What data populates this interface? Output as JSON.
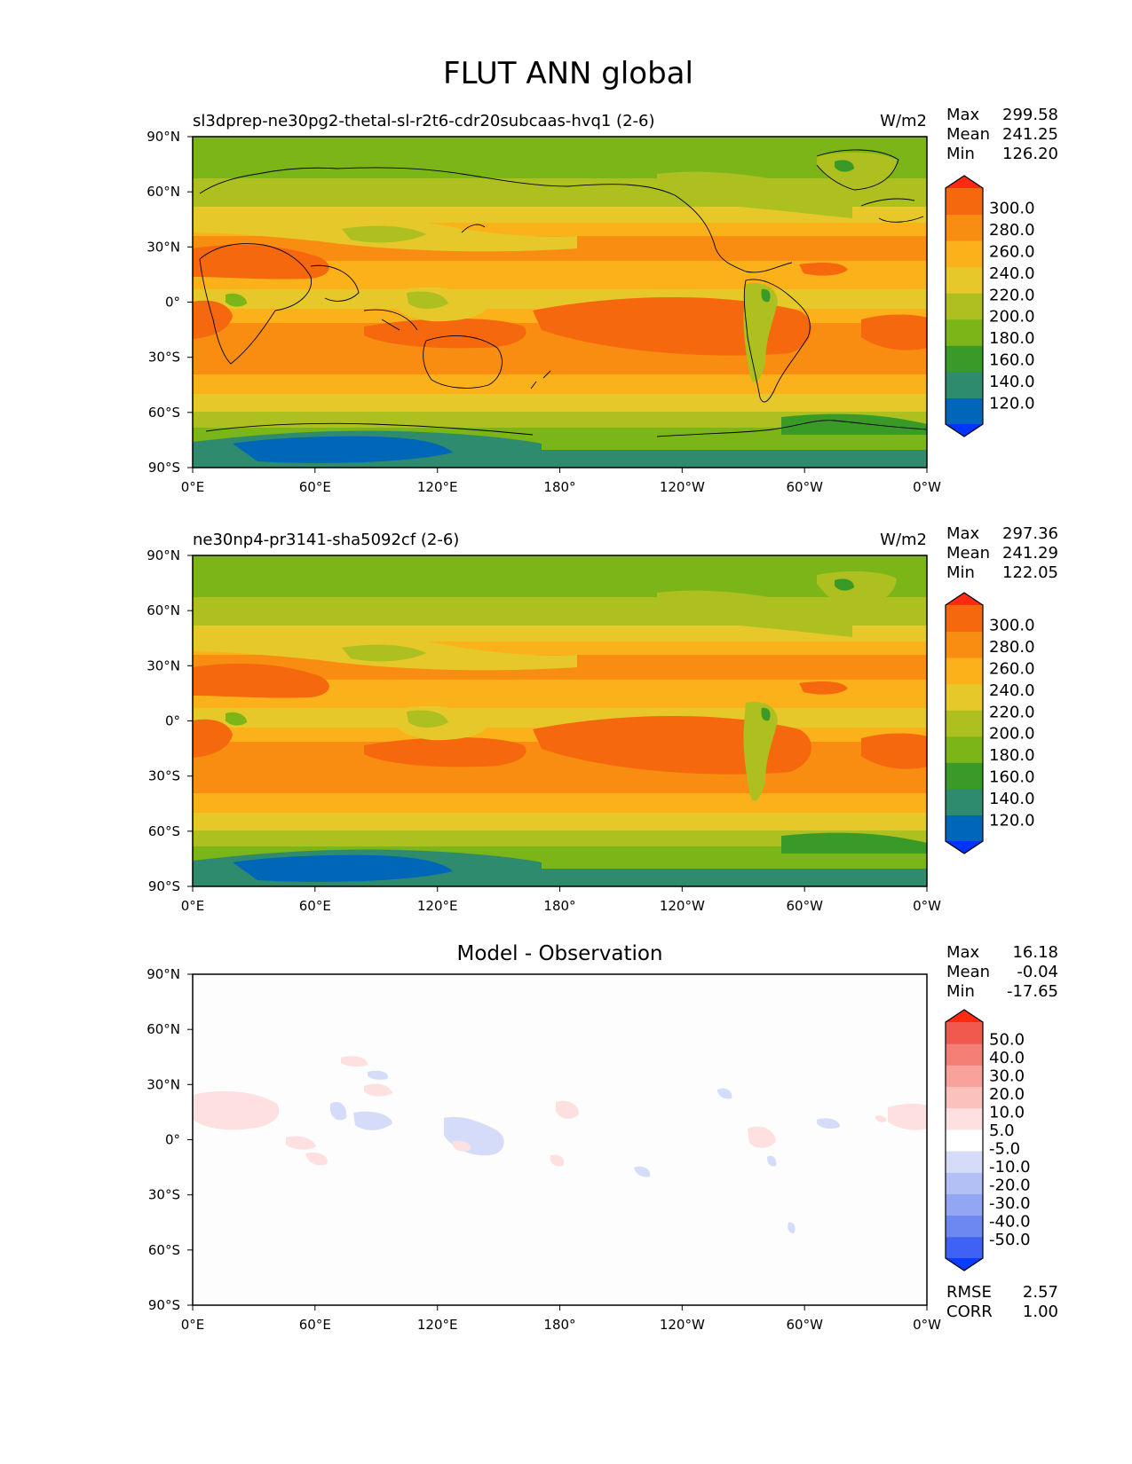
{
  "title": "FLUT ANN global",
  "x_ticks": [
    "0°E",
    "60°E",
    "120°E",
    "180°",
    "120°W",
    "60°W",
    "0°W"
  ],
  "y_ticks": [
    "90°N",
    "60°N",
    "30°N",
    "0°",
    "30°S",
    "60°S",
    "90°S"
  ],
  "stat_labels": {
    "max": "Max",
    "mean": "Mean",
    "min": "Min",
    "rmse": "RMSE",
    "corr": "CORR"
  },
  "panels": [
    {
      "id": "test",
      "title_left": "sl3dprep-ne30pg2-thetal-sl-r2t6-cdr20subcaas-hvq1 (2-6)",
      "title_center": "",
      "units": "W/m2",
      "stats": {
        "max": "299.58",
        "mean": "241.25",
        "min": "126.20"
      },
      "colorbar_labels": [
        "300.0",
        "280.0",
        "260.0",
        "240.0",
        "220.0",
        "200.0",
        "180.0",
        "160.0",
        "140.0",
        "120.0"
      ]
    },
    {
      "id": "ref",
      "title_left": "ne30np4-pr3141-sha5092cf (2-6)",
      "title_center": "",
      "units": "W/m2",
      "stats": {
        "max": "297.36",
        "mean": "241.29",
        "min": "122.05"
      },
      "colorbar_labels": [
        "300.0",
        "280.0",
        "260.0",
        "240.0",
        "220.0",
        "200.0",
        "180.0",
        "160.0",
        "140.0",
        "120.0"
      ]
    },
    {
      "id": "diff",
      "title_left": "",
      "title_center": "Model - Observation",
      "units": "",
      "stats": {
        "max": "16.18",
        "mean": "-0.04",
        "min": "-17.65",
        "rmse": "2.57",
        "corr": "1.00"
      },
      "colorbar_labels": [
        "50.0",
        "40.0",
        "30.0",
        "20.0",
        "10.0",
        "5.0",
        "-5.0",
        "-10.0",
        "-20.0",
        "-30.0",
        "-40.0",
        "-50.0"
      ]
    }
  ],
  "colors": {
    "field_scale": [
      "#0033ff",
      "#0066b8",
      "#2e8b6e",
      "#3a9a28",
      "#7cb518",
      "#adc01f",
      "#e6c82a",
      "#fbb21a",
      "#f98d12",
      "#f6680d",
      "#ff2a10"
    ],
    "diff_scale": [
      "#0a3cff",
      "#3f62f5",
      "#6e88f2",
      "#93a6f3",
      "#b3c0f5",
      "#d5dcfa",
      "#ffffff",
      "#fde0df",
      "#fbc1bd",
      "#f8a29b",
      "#f47f75",
      "#f05a4c",
      "#ff2a10"
    ]
  }
}
